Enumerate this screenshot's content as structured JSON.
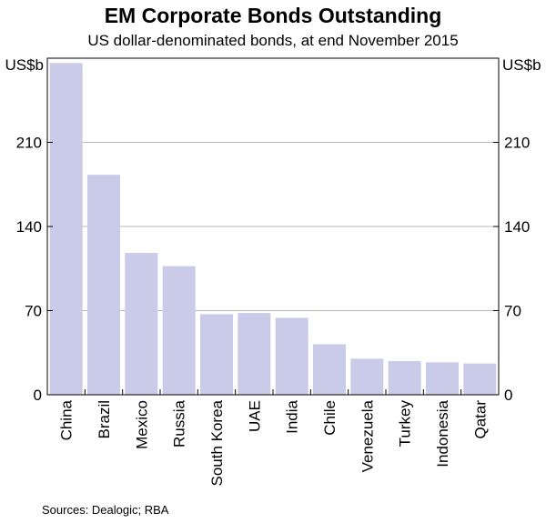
{
  "chart_data": {
    "type": "bar",
    "title": "EM Corporate Bonds Outstanding",
    "subtitle": "US dollar-denominated bonds, at end November 2015",
    "categories": [
      "China",
      "Brazil",
      "Mexico",
      "Russia",
      "South Korea",
      "UAE",
      "India",
      "Chile",
      "Venezuela",
      "Turkey",
      "Indonesia",
      "Qatar"
    ],
    "values": [
      276,
      183,
      118,
      107,
      67,
      68,
      64,
      42,
      30,
      28,
      27,
      26
    ],
    "unit_label": "US$b",
    "ylim": [
      0,
      280
    ],
    "yticks": [
      0,
      70,
      140,
      210
    ],
    "grid": true,
    "bar_color": "#c9cbe8"
  },
  "source": "Sources:   Dealogic; RBA"
}
